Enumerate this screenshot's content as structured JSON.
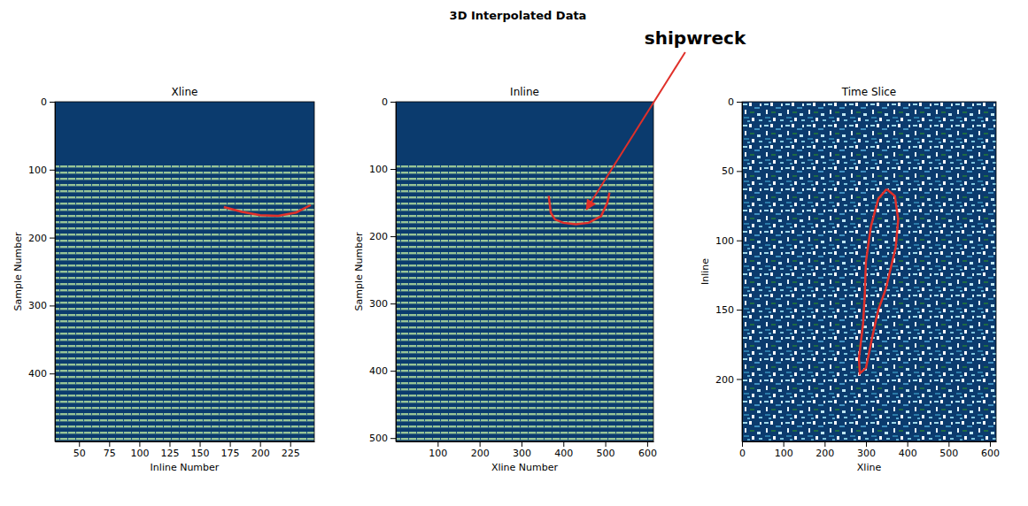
{
  "title": "3D Interpolated Data",
  "chart_data": [
    {
      "type": "image",
      "title": "Xline",
      "x_label": "Inline Number",
      "y_label": "Sample Number",
      "xlim": [
        30,
        245
      ],
      "xticks": [
        50,
        75,
        100,
        125,
        150,
        175,
        200,
        225
      ],
      "ylim": [
        500,
        0
      ],
      "yticks": [
        0,
        100,
        200,
        300,
        400
      ],
      "outline": {
        "color": "#e0302a",
        "x": [
          170,
          185,
          200,
          215,
          230,
          242
        ],
        "y": [
          155,
          162,
          167,
          168,
          163,
          152
        ]
      }
    },
    {
      "type": "image",
      "title": "Inline",
      "x_label": "Xline Number",
      "y_label": "Sample Number",
      "xlim": [
        0,
        615
      ],
      "xticks": [
        100,
        200,
        300,
        400,
        500,
        600
      ],
      "ylim": [
        505,
        0
      ],
      "yticks": [
        0,
        100,
        200,
        300,
        400,
        500
      ],
      "outline": {
        "color": "#e0302a",
        "x": [
          365,
          370,
          380,
          400,
          430,
          460,
          490,
          505,
          510
        ],
        "y": [
          140,
          165,
          175,
          180,
          182,
          180,
          170,
          150,
          135
        ]
      },
      "annotations": [
        {
          "text": "shipwreck",
          "x": 455,
          "y": 160,
          "color": "#e0302a"
        }
      ]
    },
    {
      "type": "image",
      "title": "Time Slice",
      "x_label": "Xline",
      "y_label": "Inline",
      "xlim": [
        0,
        615
      ],
      "xticks": [
        0,
        100,
        200,
        300,
        400,
        500,
        600
      ],
      "ylim": [
        245,
        0
      ],
      "yticks": [
        0,
        50,
        100,
        150,
        200
      ],
      "outline": {
        "color": "#e0302a",
        "x": [
          350,
          370,
          378,
          372,
          360,
          348,
          330,
          315,
          300,
          285,
          283,
          293,
          297,
          300,
          312,
          330,
          350
        ],
        "y": [
          63,
          68,
          85,
          105,
          120,
          135,
          150,
          170,
          192,
          196,
          185,
          160,
          140,
          115,
          90,
          70,
          63
        ]
      }
    }
  ]
}
